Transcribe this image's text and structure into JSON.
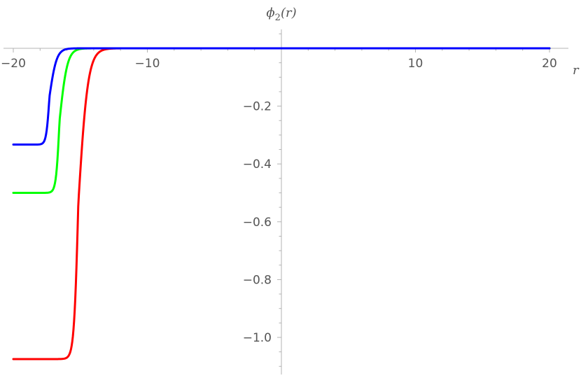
{
  "chart_data": {
    "type": "line",
    "xlabel": "r",
    "ylabel": "ϕ2(r)",
    "ylabel_main": "ϕ",
    "ylabel_sub": "2",
    "ylabel_tail": "(r)",
    "xlim": [
      -20,
      20
    ],
    "ylim": [
      -1.12,
      0.05
    ],
    "x_ticks": [
      -20,
      -10,
      10,
      20
    ],
    "x_tick_labels": [
      "−20",
      "−10",
      "10",
      "20"
    ],
    "y_ticks": [
      -0.2,
      -0.4,
      -0.6,
      -0.8,
      -1.0
    ],
    "y_tick_labels": [
      "−0.2",
      "−0.4",
      "−0.6",
      "−0.8",
      "−1.0"
    ],
    "grid": false,
    "series": [
      {
        "color": "#ff0000",
        "asymptote": -1.075,
        "center": -15.15,
        "width": 0.32
      },
      {
        "color": "#00ff00",
        "asymptote": -0.5,
        "center": -16.55,
        "width": 0.26
      },
      {
        "color": "#0000ff",
        "asymptote": -0.333,
        "center": -17.3,
        "width": 0.24
      }
    ]
  }
}
